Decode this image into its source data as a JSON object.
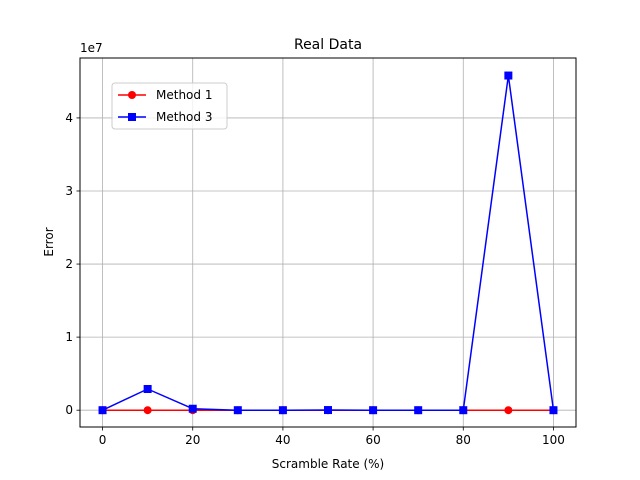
{
  "chart_data": {
    "type": "line",
    "title": "Real Data",
    "xlabel": "Scramble Rate (%)",
    "ylabel": "Error",
    "y_offset_text": "1e7",
    "y_scale_factor": 10000000,
    "xlim": [
      -5,
      105
    ],
    "ylim": [
      -2300000,
      48200000
    ],
    "x_ticks": [
      0,
      20,
      40,
      60,
      80,
      100
    ],
    "y_ticks": [
      0,
      10000000,
      20000000,
      30000000,
      40000000
    ],
    "y_tick_labels": [
      "0",
      "1",
      "2",
      "3",
      "4"
    ],
    "grid": true,
    "legend_position": "upper-left",
    "x": [
      0,
      10,
      20,
      30,
      40,
      50,
      60,
      70,
      80,
      90,
      100
    ],
    "series": [
      {
        "name": "Method 1",
        "color": "#ff0000",
        "marker": "circle",
        "values": [
          0,
          0,
          0,
          0,
          0,
          0,
          0,
          0,
          0,
          0,
          0
        ]
      },
      {
        "name": "Method 3",
        "color": "#0000ff",
        "marker": "square",
        "values": [
          0,
          2900000,
          200000,
          0,
          0,
          20000,
          0,
          0,
          0,
          45800000,
          0
        ]
      }
    ]
  }
}
